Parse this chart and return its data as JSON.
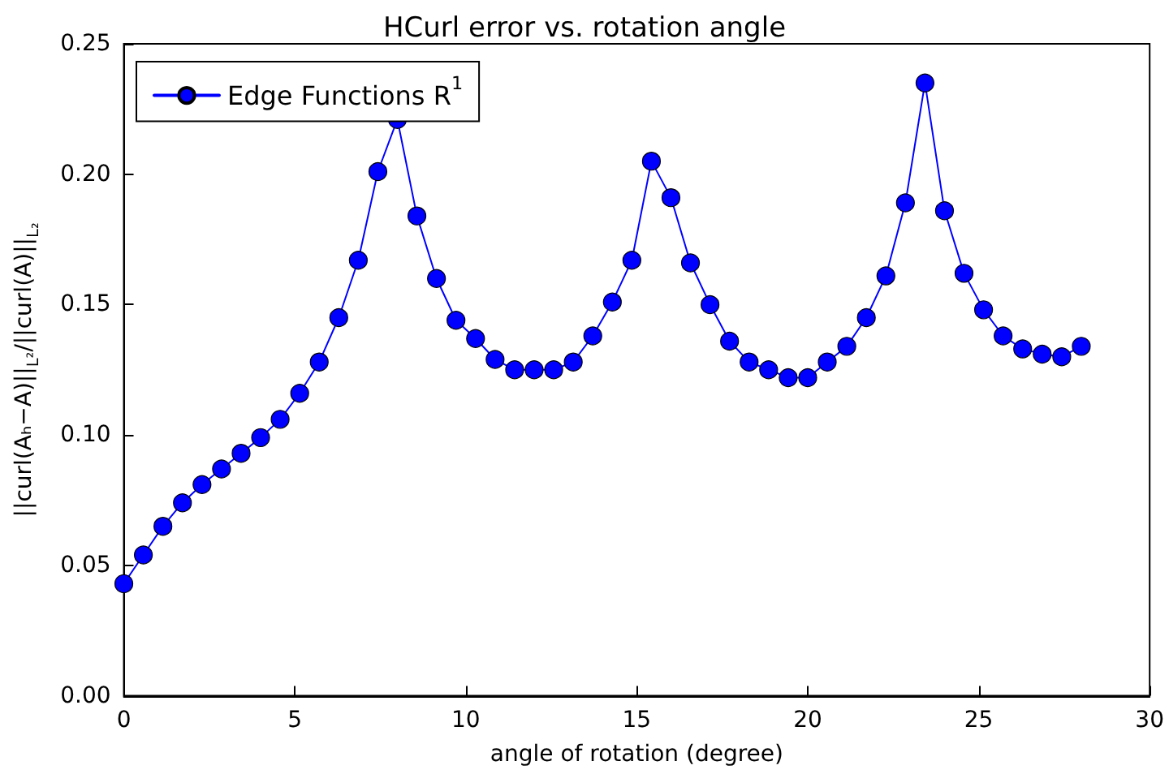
{
  "chart_data": {
    "type": "line",
    "title": "HCurl error vs. rotation angle",
    "xlabel": "angle of rotation (degree)",
    "ylabel": "||curl(Aₕ−A)||$_{L²}$/||curl(A)||$_{L₂}$",
    "x": [
      0,
      0.571,
      1.143,
      1.714,
      2.286,
      2.857,
      3.429,
      4,
      4.571,
      5.143,
      5.714,
      6.286,
      6.857,
      7.429,
      8,
      8.571,
      9.143,
      9.714,
      10.286,
      10.857,
      11.429,
      12,
      12.571,
      13.143,
      13.714,
      14.286,
      14.857,
      15.429,
      16,
      16.571,
      17.143,
      17.714,
      18.286,
      18.857,
      19.429,
      20,
      20.571,
      21.143,
      21.714,
      22.286,
      22.857,
      23.429,
      24,
      24.571,
      25.143,
      25.714,
      26.286,
      26.857,
      27.429,
      28
    ],
    "series": [
      {
        "name": "Edge Functions R$^{1}$",
        "color": "#0000ff",
        "values": [
          0.043,
          0.054,
          0.065,
          0.074,
          0.081,
          0.087,
          0.093,
          0.099,
          0.106,
          0.116,
          0.128,
          0.145,
          0.167,
          0.201,
          0.221,
          0.184,
          0.16,
          0.144,
          0.137,
          0.129,
          0.125,
          0.125,
          0.125,
          0.128,
          0.138,
          0.151,
          0.167,
          0.205,
          0.191,
          0.166,
          0.15,
          0.136,
          0.128,
          0.125,
          0.122,
          0.122,
          0.128,
          0.134,
          0.145,
          0.161,
          0.189,
          0.235,
          0.186,
          0.162,
          0.148,
          0.138,
          0.133,
          0.131,
          0.13,
          0.134
        ]
      }
    ],
    "xlim": [
      0,
      30
    ],
    "xticks": [
      0,
      5,
      10,
      15,
      20,
      25,
      30
    ],
    "ylim": [
      0,
      0.25
    ],
    "yticks": [
      {
        "value": 0,
        "label": "0.00"
      },
      {
        "value": 0.05,
        "label": "0.05"
      },
      {
        "value": 0.1,
        "label": "0.10"
      },
      {
        "value": 0.15,
        "label": "0.15"
      },
      {
        "value": 0.2,
        "label": "0.20"
      },
      {
        "value": 0.25,
        "label": "0.25"
      }
    ],
    "grid": false,
    "legend": "top left",
    "marker": "circle",
    "line_style": "solid"
  }
}
